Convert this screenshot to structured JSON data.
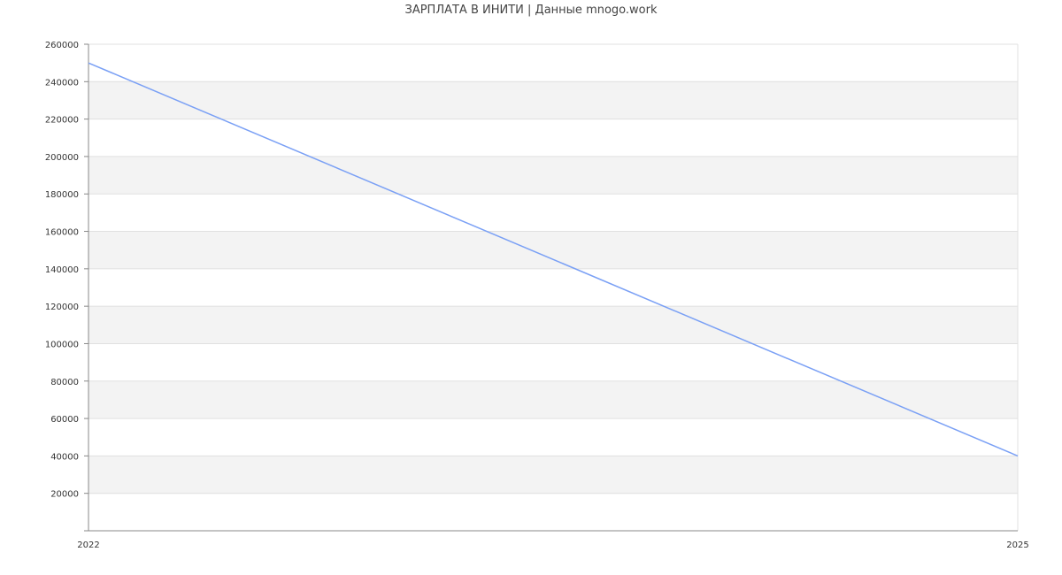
{
  "chart_data": {
    "type": "line",
    "title": "ЗАРПЛАТА В ИНИТИ | Данные mnogo.work",
    "xlabel": "",
    "ylabel": "",
    "x": [
      2022,
      2025
    ],
    "x_tick_labels": [
      "2022",
      "2025"
    ],
    "series": [
      {
        "values": [
          250000,
          40000
        ]
      }
    ],
    "ylim": [
      0,
      260000
    ],
    "y_ticks": [
      20000,
      40000,
      60000,
      80000,
      100000,
      120000,
      140000,
      160000,
      180000,
      200000,
      220000,
      240000,
      260000
    ],
    "y_tick_labels": [
      "20000",
      "40000",
      "60000",
      "80000",
      "100000",
      "120000",
      "140000",
      "160000",
      "180000",
      "200000",
      "220000",
      "240000",
      "260000"
    ],
    "grid": true,
    "banded_background": true,
    "colors": {
      "line": "#7aa0f5",
      "band": "#f3f3f3",
      "grid": "#e0e0e0",
      "axis": "#888888"
    }
  }
}
